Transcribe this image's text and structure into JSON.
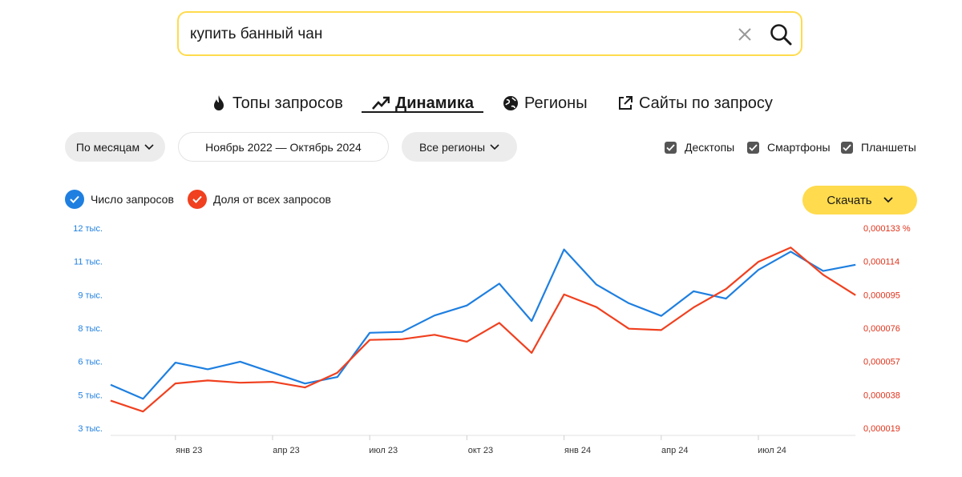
{
  "search": {
    "query": "купить банный чан"
  },
  "tabs": [
    {
      "label": "Топы запросов",
      "icon": "fire-icon"
    },
    {
      "label": "Динамика",
      "icon": "trending-up-icon"
    },
    {
      "label": "Регионы",
      "icon": "globe-icon"
    },
    {
      "label": "Сайты по запросу",
      "icon": "external-link-icon"
    }
  ],
  "active_tab": "Динамика",
  "filters": {
    "period_label": "По месяцам",
    "date_range": "Ноябрь 2022 — Октябрь 2024",
    "region_label": "Все регионы"
  },
  "devices": [
    {
      "label": "Десктопы",
      "checked": true
    },
    {
      "label": "Смартфоны",
      "checked": true
    },
    {
      "label": "Планшеты",
      "checked": true
    }
  ],
  "legend": {
    "count_label": "Число запросов",
    "share_label": "Доля от всех запросов"
  },
  "download_label": "Скачать",
  "colors": {
    "accent_yellow": "#ffdb4d",
    "series_blue": "#1e7fe0",
    "series_red": "#f0401f"
  },
  "chart_data": {
    "type": "line",
    "x": [
      "ноя 22",
      "дек 22",
      "янв 23",
      "фев 23",
      "мар 23",
      "апр 23",
      "май 23",
      "июн 23",
      "июл 23",
      "авг 23",
      "сен 23",
      "окт 23",
      "ноя 23",
      "дек 23",
      "янв 24",
      "фев 24",
      "мар 24",
      "апр 24",
      "май 24",
      "июн 24",
      "июл 24",
      "авг 24",
      "сен 24",
      "окт 24"
    ],
    "x_tick_labels": [
      "янв 23",
      "апр 23",
      "июл 23",
      "окт 23",
      "янв 24",
      "апр 24",
      "июл 24"
    ],
    "y_left_tick_labels": [
      "12 тыс.",
      "11 тыс.",
      "9 тыс.",
      "8 тыс.",
      "6 тыс.",
      "5 тыс.",
      "3 тыс."
    ],
    "y_right_tick_labels": [
      "0,000133 %",
      "0,000114",
      "0,000095",
      "0,000076",
      "0,000057",
      "0,000038",
      "0,000019"
    ],
    "y_left_range": [
      3000,
      12000
    ],
    "y_right_range": [
      1.9e-05,
      0.000133
    ],
    "series": [
      {
        "name": "Число запросов",
        "axis": "left",
        "color": "#1e7fe0",
        "values": [
          4950,
          4320,
          5950,
          5650,
          5990,
          5500,
          5010,
          5300,
          7290,
          7330,
          8070,
          8520,
          9500,
          7820,
          11040,
          9460,
          8620,
          8050,
          9160,
          8830,
          10120,
          10940,
          10070,
          10350
        ]
      },
      {
        "name": "Доля от всех запросов",
        "axis": "right",
        "color": "#f0401f",
        "values": [
          3.47e-05,
          2.85e-05,
          4.45e-05,
          4.62e-05,
          4.49e-05,
          4.54e-05,
          4.22e-05,
          5.06e-05,
          6.93e-05,
          6.97e-05,
          7.22e-05,
          6.83e-05,
          7.9e-05,
          6.19e-05,
          9.52e-05,
          8.8e-05,
          7.57e-05,
          7.49e-05,
          8.78e-05,
          9.83e-05,
          0.0001138,
          0.0001219,
          0.0001064,
          9.48e-05
        ]
      }
    ],
    "grid": false
  }
}
